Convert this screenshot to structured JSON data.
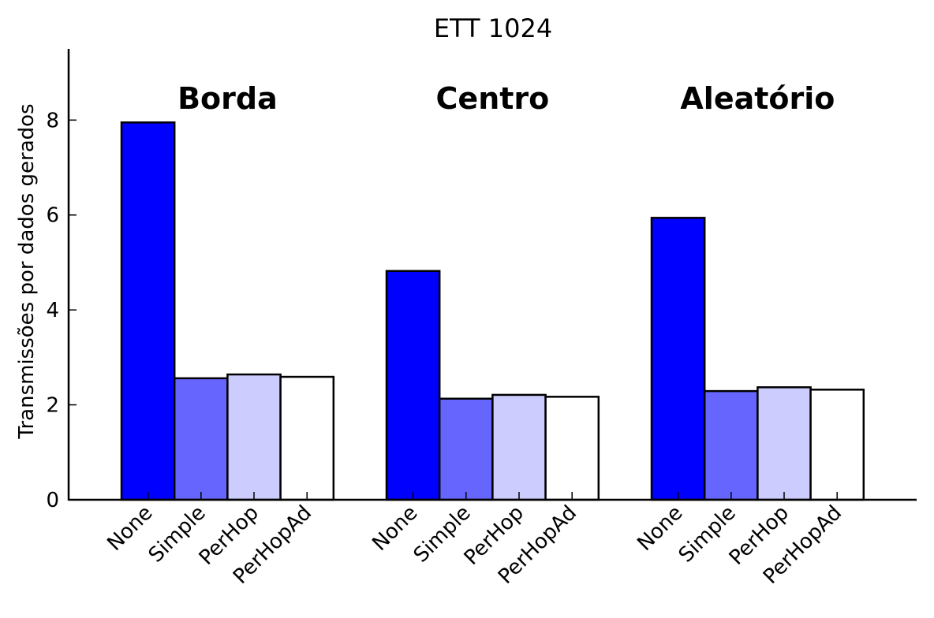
{
  "chart_data": {
    "type": "bar",
    "title": "ETT 1024",
    "ylabel": "Transmissões por dados gerados",
    "xlabel": "",
    "ylim": [
      0,
      9.5
    ],
    "yticks": [
      "0",
      "2",
      "4",
      "6",
      "8"
    ],
    "grid": false,
    "groups": [
      "Borda",
      "Centro",
      "Aleatório"
    ],
    "categories": [
      "None",
      "Simple",
      "PerHop",
      "PerHopAd"
    ],
    "series": [
      {
        "group": "Borda",
        "values": [
          7.95,
          2.56,
          2.64,
          2.59
        ]
      },
      {
        "group": "Centro",
        "values": [
          4.82,
          2.13,
          2.21,
          2.17
        ]
      },
      {
        "group": "Aleatório",
        "values": [
          5.94,
          2.29,
          2.37,
          2.32
        ]
      }
    ],
    "colors": [
      "#0000ff",
      "#6666ff",
      "#ccccff",
      "#ffffff"
    ]
  }
}
